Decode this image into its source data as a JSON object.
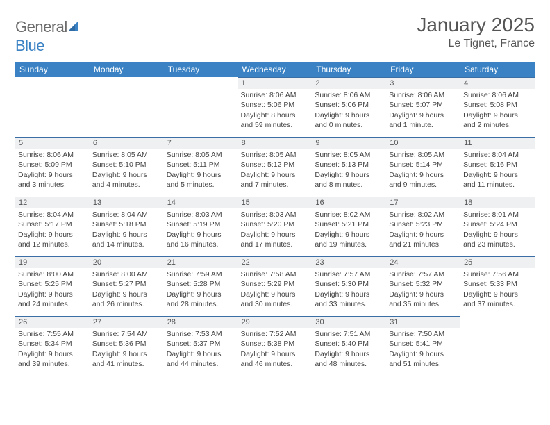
{
  "brand": {
    "part1": "General",
    "part2": "Blue"
  },
  "title": "January 2025",
  "location": "Le Tignet, France",
  "colors": {
    "header_bg": "#3a82c4",
    "header_text": "#ffffff",
    "daybar_bg": "#eef0f2",
    "daybar_border": "#3a6ea5",
    "body_text": "#444444",
    "title_text": "#555555"
  },
  "dayNames": [
    "Sunday",
    "Monday",
    "Tuesday",
    "Wednesday",
    "Thursday",
    "Friday",
    "Saturday"
  ],
  "weeks": [
    [
      null,
      null,
      null,
      {
        "n": "1",
        "sr": "8:06 AM",
        "ss": "5:06 PM",
        "dl": "8 hours and 59 minutes."
      },
      {
        "n": "2",
        "sr": "8:06 AM",
        "ss": "5:06 PM",
        "dl": "9 hours and 0 minutes."
      },
      {
        "n": "3",
        "sr": "8:06 AM",
        "ss": "5:07 PM",
        "dl": "9 hours and 1 minute."
      },
      {
        "n": "4",
        "sr": "8:06 AM",
        "ss": "5:08 PM",
        "dl": "9 hours and 2 minutes."
      }
    ],
    [
      {
        "n": "5",
        "sr": "8:06 AM",
        "ss": "5:09 PM",
        "dl": "9 hours and 3 minutes."
      },
      {
        "n": "6",
        "sr": "8:05 AM",
        "ss": "5:10 PM",
        "dl": "9 hours and 4 minutes."
      },
      {
        "n": "7",
        "sr": "8:05 AM",
        "ss": "5:11 PM",
        "dl": "9 hours and 5 minutes."
      },
      {
        "n": "8",
        "sr": "8:05 AM",
        "ss": "5:12 PM",
        "dl": "9 hours and 7 minutes."
      },
      {
        "n": "9",
        "sr": "8:05 AM",
        "ss": "5:13 PM",
        "dl": "9 hours and 8 minutes."
      },
      {
        "n": "10",
        "sr": "8:05 AM",
        "ss": "5:14 PM",
        "dl": "9 hours and 9 minutes."
      },
      {
        "n": "11",
        "sr": "8:04 AM",
        "ss": "5:16 PM",
        "dl": "9 hours and 11 minutes."
      }
    ],
    [
      {
        "n": "12",
        "sr": "8:04 AM",
        "ss": "5:17 PM",
        "dl": "9 hours and 12 minutes."
      },
      {
        "n": "13",
        "sr": "8:04 AM",
        "ss": "5:18 PM",
        "dl": "9 hours and 14 minutes."
      },
      {
        "n": "14",
        "sr": "8:03 AM",
        "ss": "5:19 PM",
        "dl": "9 hours and 16 minutes."
      },
      {
        "n": "15",
        "sr": "8:03 AM",
        "ss": "5:20 PM",
        "dl": "9 hours and 17 minutes."
      },
      {
        "n": "16",
        "sr": "8:02 AM",
        "ss": "5:21 PM",
        "dl": "9 hours and 19 minutes."
      },
      {
        "n": "17",
        "sr": "8:02 AM",
        "ss": "5:23 PM",
        "dl": "9 hours and 21 minutes."
      },
      {
        "n": "18",
        "sr": "8:01 AM",
        "ss": "5:24 PM",
        "dl": "9 hours and 23 minutes."
      }
    ],
    [
      {
        "n": "19",
        "sr": "8:00 AM",
        "ss": "5:25 PM",
        "dl": "9 hours and 24 minutes."
      },
      {
        "n": "20",
        "sr": "8:00 AM",
        "ss": "5:27 PM",
        "dl": "9 hours and 26 minutes."
      },
      {
        "n": "21",
        "sr": "7:59 AM",
        "ss": "5:28 PM",
        "dl": "9 hours and 28 minutes."
      },
      {
        "n": "22",
        "sr": "7:58 AM",
        "ss": "5:29 PM",
        "dl": "9 hours and 30 minutes."
      },
      {
        "n": "23",
        "sr": "7:57 AM",
        "ss": "5:30 PM",
        "dl": "9 hours and 33 minutes."
      },
      {
        "n": "24",
        "sr": "7:57 AM",
        "ss": "5:32 PM",
        "dl": "9 hours and 35 minutes."
      },
      {
        "n": "25",
        "sr": "7:56 AM",
        "ss": "5:33 PM",
        "dl": "9 hours and 37 minutes."
      }
    ],
    [
      {
        "n": "26",
        "sr": "7:55 AM",
        "ss": "5:34 PM",
        "dl": "9 hours and 39 minutes."
      },
      {
        "n": "27",
        "sr": "7:54 AM",
        "ss": "5:36 PM",
        "dl": "9 hours and 41 minutes."
      },
      {
        "n": "28",
        "sr": "7:53 AM",
        "ss": "5:37 PM",
        "dl": "9 hours and 44 minutes."
      },
      {
        "n": "29",
        "sr": "7:52 AM",
        "ss": "5:38 PM",
        "dl": "9 hours and 46 minutes."
      },
      {
        "n": "30",
        "sr": "7:51 AM",
        "ss": "5:40 PM",
        "dl": "9 hours and 48 minutes."
      },
      {
        "n": "31",
        "sr": "7:50 AM",
        "ss": "5:41 PM",
        "dl": "9 hours and 51 minutes."
      },
      null
    ]
  ],
  "labels": {
    "sunrise": "Sunrise:",
    "sunset": "Sunset:",
    "daylight": "Daylight:"
  }
}
